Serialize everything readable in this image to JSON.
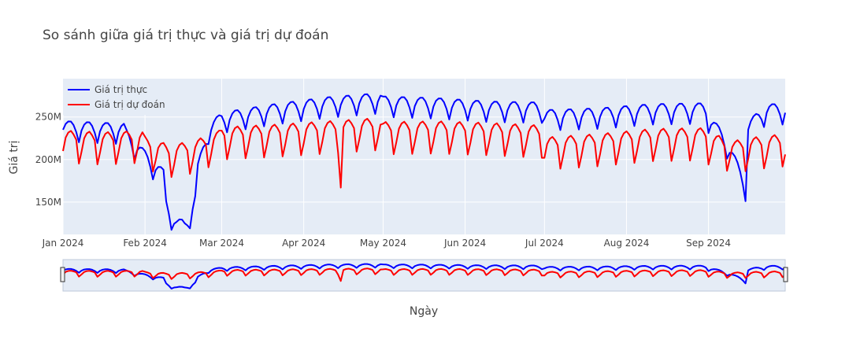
{
  "chart_data": {
    "type": "line",
    "title": "So sánh giữa giá trị thực và giá trị dự đoán",
    "xlabel": "Ngày",
    "ylabel": "Giá trị",
    "x_start": "2024-01-01",
    "x_end": "2024-09-30",
    "x_ticks": [
      "Jan 2024",
      "Feb 2024",
      "Mar 2024",
      "Apr 2024",
      "May 2024",
      "Jun 2024",
      "Jul 2024",
      "Aug 2024",
      "Sep 2024"
    ],
    "y_ticks": [
      "150M",
      "200M",
      "250M"
    ],
    "ylim": [
      112000000,
      295000000
    ],
    "legend_position": "top-left",
    "grid": true,
    "background": "#e5ecf6",
    "series": [
      {
        "name": "Giá trị thực",
        "color": "#0000ff",
        "weekly_pattern": [
          -14000000,
          0,
          7000000,
          10000000,
          10000000,
          6000000,
          -2000000
        ],
        "segments": [
          {
            "from": "2024-01-01",
            "to": "2024-01-24",
            "levels": [
              235000000,
              232000000
            ]
          },
          {
            "from": "2024-01-25",
            "to": "2024-02-08",
            "levels": [
              225000000,
              200000000,
              178000000
            ]
          },
          {
            "from": "2024-02-09",
            "to": "2024-02-20",
            "levels": [
              145000000,
              120000000,
              119000000,
              150000000
            ]
          },
          {
            "from": "2024-02-21",
            "to": "2024-02-29",
            "levels": [
              185000000,
              232000000,
              242000000
            ]
          },
          {
            "from": "2024-03-01",
            "to": "2024-04-30",
            "levels": [
              245000000,
              255000000,
              263000000,
              268000000
            ]
          },
          {
            "from": "2024-05-01",
            "to": "2024-06-30",
            "levels": [
              264000000,
              262000000,
              258000000,
              257000000
            ]
          },
          {
            "from": "2024-07-01",
            "to": "2024-08-31",
            "levels": [
              248000000,
              250000000,
              255000000,
              256000000
            ]
          },
          {
            "from": "2024-09-01",
            "to": "2024-09-15",
            "levels": [
              245000000,
              215000000,
              165000000
            ]
          },
          {
            "from": "2024-09-16",
            "to": "2024-09-30",
            "levels": [
              235000000,
              255000000,
              255000000
            ]
          }
        ]
      },
      {
        "name": "Giá trị dự đoán",
        "color": "#ff0000",
        "weekly_pattern": [
          -26000000,
          -12000000,
          4000000,
          10000000,
          12000000,
          8000000,
          2000000
        ],
        "segments": [
          {
            "from": "2024-01-01",
            "to": "2024-01-31",
            "levels": [
              222000000,
              220000000,
              222000000
            ]
          },
          {
            "from": "2024-02-01",
            "to": "2024-02-29",
            "levels": [
              215000000,
              205000000,
              210000000,
              222000000
            ]
          },
          {
            "from": "2024-03-01",
            "to": "2024-04-30",
            "levels": [
              226000000,
              229000000,
              233000000,
              237000000
            ]
          },
          {
            "from": "2024-05-01",
            "to": "2024-06-30",
            "levels": [
              232000000,
              233000000,
              231000000,
              228000000
            ]
          },
          {
            "from": "2024-07-01",
            "to": "2024-08-31",
            "levels": [
              214000000,
              218000000,
              224000000,
              225000000
            ]
          },
          {
            "from": "2024-09-01",
            "to": "2024-09-30",
            "levels": [
              220000000,
              210000000,
              215000000,
              218000000
            ]
          }
        ],
        "spikes": [
          {
            "date": "2024-04-15",
            "value": 167000000
          }
        ]
      }
    ]
  }
}
